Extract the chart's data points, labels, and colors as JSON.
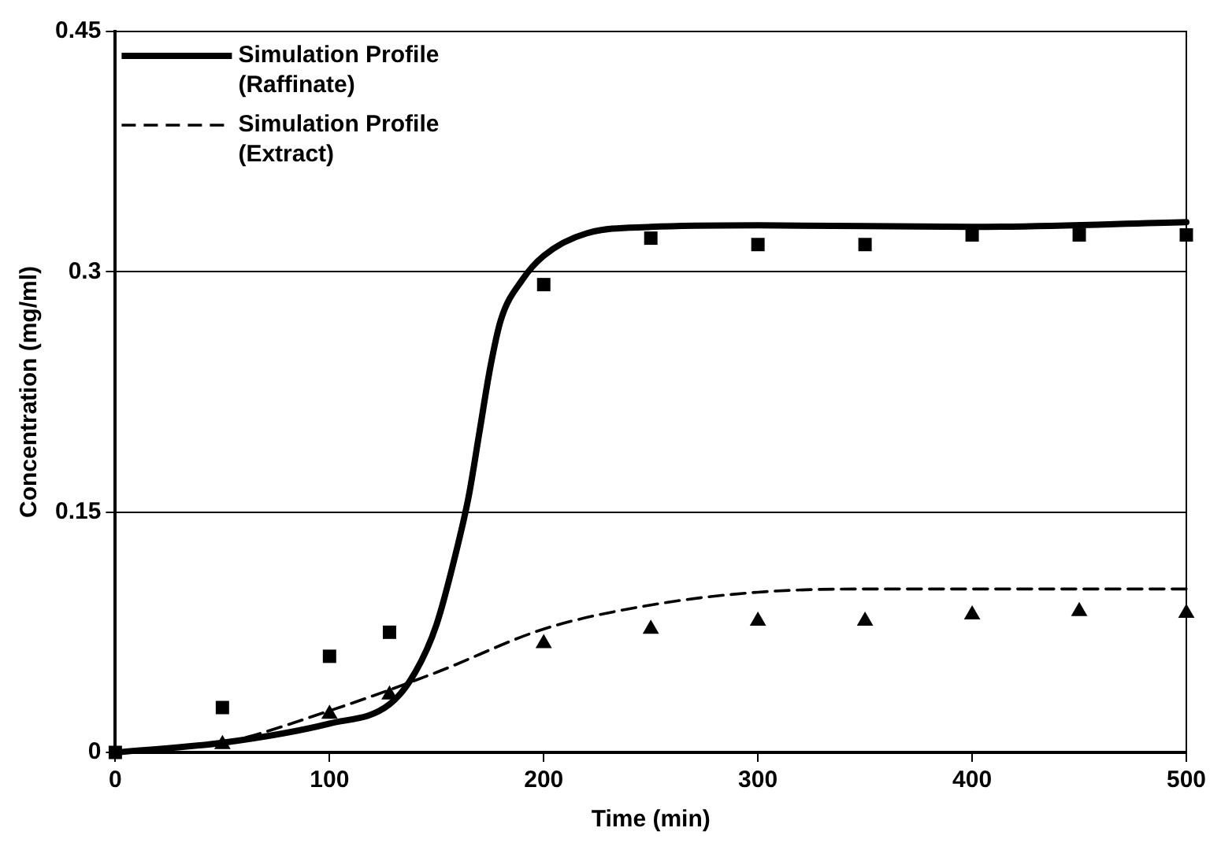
{
  "chart_data": {
    "type": "line",
    "xlabel": "Time (min)",
    "ylabel": "Concentration (mg/ml)",
    "xlim": [
      0,
      500
    ],
    "xticks": [
      0,
      100,
      200,
      300,
      400,
      500
    ],
    "ylim": [
      0,
      0.45
    ],
    "yticks": [
      0,
      0.15,
      0.3,
      0.45
    ],
    "grid": "y",
    "legend": "top left",
    "series": [
      {
        "name": "Simulation Profile (Raffinate)",
        "type": "line",
        "color": "#000000",
        "line_style": "solid",
        "marker": "none",
        "x": [
          0,
          50,
          100,
          128,
          140,
          150,
          160,
          165,
          170,
          175,
          180,
          190,
          200,
          220,
          250,
          300,
          400,
          500
        ],
        "values": [
          0,
          0.006,
          0.018,
          0.03,
          0.05,
          0.08,
          0.13,
          0.16,
          0.2,
          0.24,
          0.27,
          0.295,
          0.31,
          0.324,
          0.328,
          0.329,
          0.328,
          0.331
        ]
      },
      {
        "name": "Simulation Profile (Extract)",
        "type": "line",
        "color": "#000000",
        "line_style": "dashed",
        "marker": "none",
        "x": [
          0,
          50,
          100,
          150,
          200,
          250,
          300,
          350,
          400,
          500
        ],
        "values": [
          0,
          0.006,
          0.026,
          0.05,
          0.077,
          0.092,
          0.1,
          0.102,
          0.102,
          0.102
        ]
      },
      {
        "type": "scatter",
        "color": "#000000",
        "marker": "square",
        "x": [
          0,
          50,
          100,
          128,
          200,
          250,
          300,
          350,
          400,
          450,
          500
        ],
        "values": [
          0,
          0.028,
          0.06,
          0.075,
          0.292,
          0.321,
          0.317,
          0.317,
          0.323,
          0.323,
          0.323
        ]
      },
      {
        "type": "scatter",
        "color": "#000000",
        "marker": "triangle",
        "x": [
          50,
          100,
          128,
          200,
          250,
          300,
          350,
          400,
          450,
          500
        ],
        "values": [
          0.005,
          0.024,
          0.036,
          0.068,
          0.077,
          0.082,
          0.082,
          0.086,
          0.088,
          0.087
        ]
      }
    ]
  }
}
